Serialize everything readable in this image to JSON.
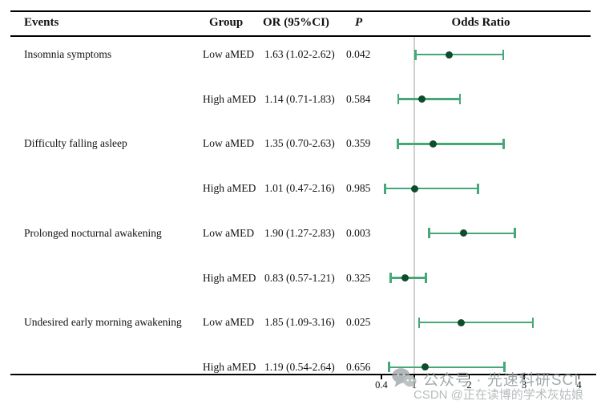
{
  "table": {
    "headers": {
      "events": "Events",
      "group": "Group",
      "or": "OR (95%CI)",
      "p": "P",
      "plot": "Odds Ratio"
    },
    "rows": [
      {
        "event": "Insomnia symptoms",
        "group": "Low aMED",
        "or_ci": "1.63 (1.02-2.62)",
        "p": "0.042"
      },
      {
        "event": "",
        "group": "High aMED",
        "or_ci": "1.14 (0.71-1.83)",
        "p": "0.584"
      },
      {
        "event": "Difficulty falling asleep",
        "group": "Low aMED",
        "or_ci": "1.35 (0.70-2.63)",
        "p": "0.359"
      },
      {
        "event": "",
        "group": "High aMED",
        "or_ci": "1.01 (0.47-2.16)",
        "p": "0.985"
      },
      {
        "event": "Prolonged nocturnal awakening",
        "group": "Low aMED",
        "or_ci": "1.90 (1.27-2.83)",
        "p": "0.003"
      },
      {
        "event": "",
        "group": "High aMED",
        "or_ci": "0.83 (0.57-1.21)",
        "p": "0.325"
      },
      {
        "event": "Undesired early morning awakening",
        "group": "Low aMED",
        "or_ci": "1.85 (1.09-3.16)",
        "p": "0.025"
      },
      {
        "event": "",
        "group": "High aMED",
        "or_ci": "1.19 (0.54-2.64)",
        "p": "0.656"
      }
    ]
  },
  "chart_data": {
    "type": "scatter",
    "subtype": "forest-plot",
    "title": "Odds Ratio",
    "xlabel": "",
    "ylabel": "",
    "x_scale": "linear",
    "xlim": [
      0.35,
      4.3
    ],
    "x_ticks": [
      0.4,
      1,
      2,
      3,
      4
    ],
    "x_tick_labels": [
      "0.4",
      "1",
      "2",
      "3",
      "4"
    ],
    "reference_line_x": 1,
    "grid": false,
    "legend_position": "none",
    "rows": [
      {
        "event": "Insomnia symptoms",
        "group": "Low aMED",
        "or": 1.63,
        "ci_low": 1.02,
        "ci_high": 2.62,
        "p": 0.042
      },
      {
        "event": "Insomnia symptoms",
        "group": "High aMED",
        "or": 1.14,
        "ci_low": 0.71,
        "ci_high": 1.83,
        "p": 0.584
      },
      {
        "event": "Difficulty falling asleep",
        "group": "Low aMED",
        "or": 1.35,
        "ci_low": 0.7,
        "ci_high": 2.63,
        "p": 0.359
      },
      {
        "event": "Difficulty falling asleep",
        "group": "High aMED",
        "or": 1.01,
        "ci_low": 0.47,
        "ci_high": 2.16,
        "p": 0.985
      },
      {
        "event": "Prolonged nocturnal awakening",
        "group": "Low aMED",
        "or": 1.9,
        "ci_low": 1.27,
        "ci_high": 2.83,
        "p": 0.003
      },
      {
        "event": "Prolonged nocturnal awakening",
        "group": "High aMED",
        "or": 0.83,
        "ci_low": 0.57,
        "ci_high": 1.21,
        "p": 0.325
      },
      {
        "event": "Undesired early morning awakening",
        "group": "Low aMED",
        "or": 1.85,
        "ci_low": 1.09,
        "ci_high": 3.16,
        "p": 0.025
      },
      {
        "event": "Undesired early morning awakening",
        "group": "High aMED",
        "or": 1.19,
        "ci_low": 0.54,
        "ci_high": 2.64,
        "p": 0.656
      }
    ]
  },
  "colors": {
    "ci_bar": "#46a878",
    "point": "#0d4d2c",
    "reference_line": "#cfcfcf",
    "rule": "#000000",
    "text": "#111111",
    "watermark_primary": "#8e989a",
    "watermark_secondary": "#aab0b2"
  },
  "watermark": {
    "icon": "wechat-icon",
    "line1": "公众号 · 光速科研SCI",
    "line2": "CSDN @正在读博的学术灰姑娘"
  }
}
